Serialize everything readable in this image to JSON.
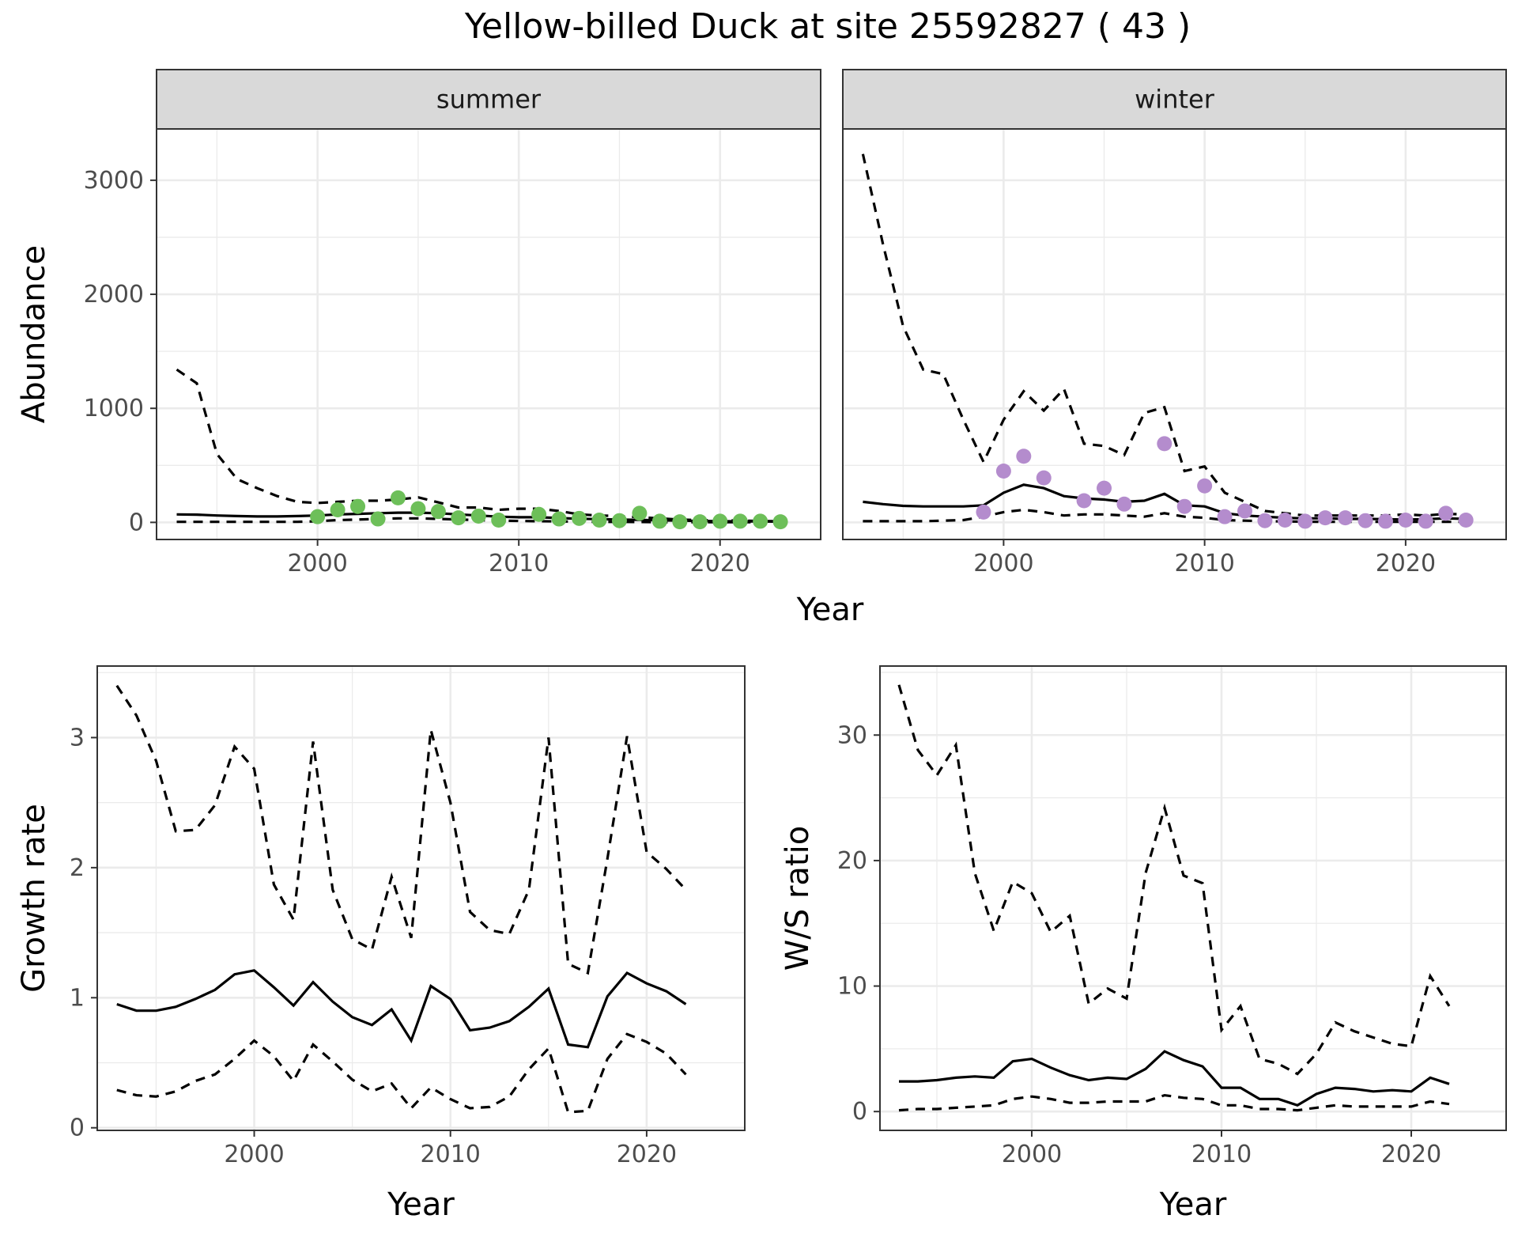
{
  "figure": {
    "title": "Yellow-billed Duck at site 25592827 ( 43 )",
    "shared_xlabel_top": "Year"
  },
  "chart_data": [
    {
      "type": "line",
      "panel": "summer",
      "strip_label": "summer",
      "ylabel": "Abundance",
      "xlabel": "",
      "xlim": [
        1992,
        2025
      ],
      "ylim": [
        -150,
        3450
      ],
      "x_ticks": [
        2000,
        2010,
        2020
      ],
      "y_ticks": [
        0,
        1000,
        2000,
        3000
      ],
      "grid": true,
      "point_color": "#6dbf59",
      "x": [
        1993,
        1994,
        1995,
        1996,
        1997,
        1998,
        1999,
        2000,
        2001,
        2002,
        2003,
        2004,
        2005,
        2006,
        2007,
        2008,
        2009,
        2010,
        2011,
        2012,
        2013,
        2014,
        2015,
        2016,
        2017,
        2018,
        2019,
        2020,
        2021,
        2022,
        2023
      ],
      "series": [
        {
          "name": "",
          "style": "solid",
          "values": [
            70,
            68,
            60,
            55,
            52,
            52,
            55,
            60,
            70,
            75,
            80,
            85,
            85,
            80,
            70,
            60,
            50,
            45,
            45,
            38,
            32,
            28,
            25,
            22,
            18,
            15,
            12,
            10,
            9,
            8,
            6
          ]
        },
        {
          "name": "",
          "style": "dashed",
          "values": [
            1340,
            1220,
            600,
            380,
            300,
            230,
            180,
            170,
            180,
            190,
            190,
            200,
            220,
            175,
            130,
            130,
            110,
            120,
            120,
            100,
            70,
            60,
            55,
            45,
            35,
            25,
            20,
            18,
            15,
            12,
            10
          ]
        },
        {
          "name": "",
          "style": "dashed",
          "values": [
            5,
            5,
            5,
            5,
            5,
            5,
            5,
            10,
            20,
            25,
            30,
            35,
            35,
            30,
            25,
            20,
            15,
            12,
            10,
            8,
            6,
            5,
            4,
            3,
            2,
            2,
            2,
            2,
            1,
            1,
            1
          ]
        }
      ],
      "points": {
        "x": [
          2000,
          2001,
          2002,
          2003,
          2004,
          2005,
          2006,
          2007,
          2008,
          2009,
          2011,
          2012,
          2013,
          2014,
          2015,
          2016,
          2017,
          2018,
          2019,
          2020,
          2021,
          2022,
          2023
        ],
        "y": [
          50,
          110,
          140,
          30,
          215,
          120,
          95,
          40,
          55,
          20,
          70,
          30,
          35,
          20,
          15,
          80,
          10,
          5,
          5,
          10,
          10,
          10,
          5
        ]
      }
    },
    {
      "type": "line",
      "panel": "winter",
      "strip_label": "winter",
      "ylabel": "",
      "xlabel": "",
      "xlim": [
        1992,
        2025
      ],
      "ylim": [
        -150,
        3450
      ],
      "x_ticks": [
        2000,
        2010,
        2020
      ],
      "y_ticks": [
        0,
        1000,
        2000,
        3000
      ],
      "grid": true,
      "point_color": "#b48ccd",
      "x": [
        1993,
        1994,
        1995,
        1996,
        1997,
        1998,
        1999,
        2000,
        2001,
        2002,
        2003,
        2004,
        2005,
        2006,
        2007,
        2008,
        2009,
        2010,
        2011,
        2012,
        2013,
        2014,
        2015,
        2016,
        2017,
        2018,
        2019,
        2020,
        2021,
        2022,
        2023
      ],
      "series": [
        {
          "name": "",
          "style": "solid",
          "values": [
            180,
            160,
            145,
            140,
            140,
            140,
            150,
            260,
            330,
            300,
            230,
            210,
            200,
            180,
            190,
            250,
            150,
            140,
            80,
            60,
            50,
            40,
            35,
            35,
            30,
            30,
            28,
            25,
            28,
            35,
            30
          ]
        },
        {
          "name": "",
          "style": "dashed",
          "values": [
            3230,
            2440,
            1720,
            1340,
            1300,
            900,
            530,
            900,
            1150,
            980,
            1170,
            690,
            670,
            590,
            960,
            1010,
            450,
            490,
            260,
            180,
            100,
            80,
            60,
            60,
            60,
            60,
            60,
            70,
            60,
            75,
            70
          ]
        },
        {
          "name": "",
          "style": "dashed",
          "values": [
            10,
            10,
            10,
            10,
            15,
            20,
            50,
            90,
            110,
            90,
            60,
            70,
            70,
            60,
            50,
            80,
            50,
            40,
            20,
            15,
            10,
            8,
            6,
            5,
            5,
            5,
            5,
            5,
            5,
            5,
            5
          ]
        }
      ],
      "points": {
        "x": [
          1999,
          2000,
          2001,
          2002,
          2004,
          2005,
          2006,
          2008,
          2009,
          2010,
          2011,
          2012,
          2013,
          2014,
          2015,
          2016,
          2017,
          2018,
          2019,
          2020,
          2021,
          2022,
          2023
        ],
        "y": [
          90,
          450,
          580,
          390,
          190,
          300,
          160,
          690,
          140,
          320,
          50,
          100,
          15,
          20,
          10,
          40,
          40,
          15,
          10,
          20,
          10,
          80,
          20
        ]
      }
    },
    {
      "type": "line",
      "panel": "growth",
      "ylabel": "Growth rate",
      "xlabel": "Year",
      "xlim": [
        1992,
        2025
      ],
      "ylim": [
        -0.02,
        3.55
      ],
      "x_ticks": [
        2000,
        2010,
        2020
      ],
      "y_ticks": [
        0,
        1,
        2,
        3
      ],
      "grid": true,
      "x": [
        1993,
        1994,
        1995,
        1996,
        1997,
        1998,
        1999,
        2000,
        2001,
        2002,
        2003,
        2004,
        2005,
        2006,
        2007,
        2008,
        2009,
        2010,
        2011,
        2012,
        2013,
        2014,
        2015,
        2016,
        2017,
        2018,
        2019,
        2020,
        2021,
        2022
      ],
      "series": [
        {
          "name": "",
          "style": "solid",
          "values": [
            0.95,
            0.9,
            0.9,
            0.93,
            0.99,
            1.06,
            1.18,
            1.21,
            1.08,
            0.94,
            1.12,
            0.97,
            0.85,
            0.79,
            0.91,
            0.67,
            1.09,
            0.99,
            0.75,
            0.77,
            0.82,
            0.93,
            1.07,
            0.64,
            0.62,
            1.01,
            1.19,
            1.11,
            1.05,
            0.95
          ]
        },
        {
          "name": "",
          "style": "dashed",
          "values": [
            3.4,
            3.17,
            2.82,
            2.28,
            2.29,
            2.48,
            2.93,
            2.76,
            1.87,
            1.6,
            2.97,
            1.83,
            1.45,
            1.37,
            1.93,
            1.46,
            3.06,
            2.5,
            1.66,
            1.52,
            1.49,
            1.83,
            3.0,
            1.26,
            1.19,
            2.07,
            3.01,
            2.12,
            1.99,
            1.83
          ]
        },
        {
          "name": "",
          "style": "dashed",
          "values": [
            0.29,
            0.25,
            0.24,
            0.28,
            0.36,
            0.41,
            0.53,
            0.67,
            0.55,
            0.36,
            0.64,
            0.51,
            0.37,
            0.28,
            0.34,
            0.15,
            0.31,
            0.22,
            0.15,
            0.16,
            0.24,
            0.45,
            0.61,
            0.12,
            0.13,
            0.53,
            0.72,
            0.66,
            0.57,
            0.41
          ]
        }
      ]
    },
    {
      "type": "line",
      "panel": "ws_ratio",
      "ylabel": "W/S ratio",
      "xlabel": "Year",
      "xlim": [
        1992,
        2025
      ],
      "ylim": [
        -1.5,
        35.5
      ],
      "x_ticks": [
        2000,
        2010,
        2020
      ],
      "y_ticks": [
        0,
        10,
        20,
        30
      ],
      "grid": true,
      "x": [
        1993,
        1994,
        1995,
        1996,
        1997,
        1998,
        1999,
        2000,
        2001,
        2002,
        2003,
        2004,
        2005,
        2006,
        2007,
        2008,
        2009,
        2010,
        2011,
        2012,
        2013,
        2014,
        2015,
        2016,
        2017,
        2018,
        2019,
        2020,
        2021,
        2022
      ],
      "series": [
        {
          "name": "",
          "style": "solid",
          "values": [
            2.4,
            2.4,
            2.5,
            2.7,
            2.8,
            2.7,
            4.0,
            4.2,
            3.5,
            2.9,
            2.5,
            2.7,
            2.6,
            3.4,
            4.8,
            4.1,
            3.6,
            1.9,
            1.9,
            1.0,
            1.0,
            0.5,
            1.4,
            1.9,
            1.8,
            1.6,
            1.7,
            1.6,
            2.7,
            2.2
          ]
        },
        {
          "name": "",
          "style": "dashed",
          "values": [
            34.0,
            28.8,
            26.8,
            29.2,
            19.0,
            14.4,
            18.3,
            17.4,
            14.3,
            15.6,
            8.6,
            9.8,
            9.0,
            19.0,
            24.2,
            18.8,
            18.2,
            6.5,
            8.4,
            4.2,
            3.8,
            3.0,
            4.6,
            7.1,
            6.4,
            5.9,
            5.4,
            5.2,
            10.8,
            8.4
          ]
        },
        {
          "name": "",
          "style": "dashed",
          "values": [
            0.1,
            0.2,
            0.2,
            0.3,
            0.4,
            0.5,
            1.0,
            1.2,
            1.0,
            0.7,
            0.7,
            0.8,
            0.8,
            0.8,
            1.3,
            1.1,
            1.0,
            0.5,
            0.5,
            0.2,
            0.2,
            0.1,
            0.3,
            0.5,
            0.4,
            0.4,
            0.4,
            0.4,
            0.8,
            0.6
          ]
        }
      ]
    }
  ]
}
